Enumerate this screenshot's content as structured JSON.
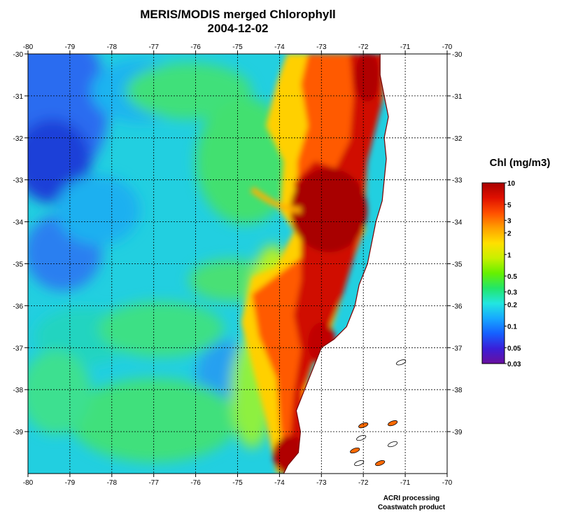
{
  "title": "MERIS/MODIS merged Chlorophyll",
  "date": "2004-12-02",
  "colorbar": {
    "title": "Chl (mg/m3)",
    "tick_labels": [
      "10",
      "5",
      "3",
      "2",
      "1",
      "0.5",
      "0.3",
      "0.2",
      "0.1",
      "0.05",
      "0.03"
    ],
    "tick_values": [
      10,
      5,
      3,
      2,
      1,
      0.5,
      0.3,
      0.2,
      0.1,
      0.05,
      0.03
    ],
    "range": [
      0.03,
      10
    ],
    "scale": "log",
    "colors": [
      "#6a0f9e",
      "#3a1fd8",
      "#1560ff",
      "#17a8ff",
      "#22e6e0",
      "#22e66a",
      "#66f000",
      "#c8f000",
      "#ffe000",
      "#ffa000",
      "#ff5000",
      "#e01000",
      "#a80000"
    ]
  },
  "map": {
    "lon_range": [
      -80,
      -70
    ],
    "lat_range": [
      -40,
      -30
    ],
    "lon_tick_labels": [
      "-80",
      "-79",
      "-78",
      "-77",
      "-76",
      "-75",
      "-74",
      "-73",
      "-72",
      "-71",
      "-70"
    ],
    "lon_ticks": [
      -80,
      -79,
      -78,
      -77,
      -76,
      -75,
      -74,
      -73,
      -72,
      -71,
      -70
    ],
    "lat_tick_labels": [
      "-30",
      "-31",
      "-32",
      "-33",
      "-34",
      "-35",
      "-36",
      "-37",
      "-38",
      "-39"
    ],
    "lat_ticks": [
      -30,
      -31,
      -32,
      -33,
      -34,
      -35,
      -36,
      -37,
      -38,
      -39
    ],
    "grid": true,
    "land_color": "#ffffff",
    "coastline_lon": [
      -71.6,
      -71.6,
      -71.5,
      -71.4,
      -71.5,
      -71.45,
      -71.5,
      -71.55,
      -71.7,
      -71.8,
      -71.9,
      -72.1,
      -72.2,
      -72.4,
      -72.7,
      -73.0,
      -73.2,
      -73.4,
      -73.6,
      -73.5,
      -73.55,
      -73.8,
      -73.9
    ],
    "coastline_lat": [
      -30.0,
      -30.5,
      -31.0,
      -31.5,
      -32.0,
      -32.5,
      -33.0,
      -33.5,
      -34.0,
      -34.5,
      -35.0,
      -35.5,
      -36.0,
      -36.5,
      -36.8,
      -37.0,
      -37.5,
      -38.0,
      -38.5,
      -39.0,
      -39.5,
      -39.8,
      -40.0
    ],
    "islands": [
      {
        "lon": -71.1,
        "lat": -37.35
      },
      {
        "lon": -71.3,
        "lat": -38.8
      },
      {
        "lon": -71.3,
        "lat": -39.3
      },
      {
        "lon": -72.0,
        "lat": -38.85
      },
      {
        "lon": -72.05,
        "lat": -39.15
      },
      {
        "lon": -72.2,
        "lat": -39.45
      },
      {
        "lon": -72.1,
        "lat": -39.75
      },
      {
        "lon": -71.6,
        "lat": -39.75
      }
    ]
  },
  "credits": [
    "ACRI processing",
    "Coastwatch product"
  ]
}
